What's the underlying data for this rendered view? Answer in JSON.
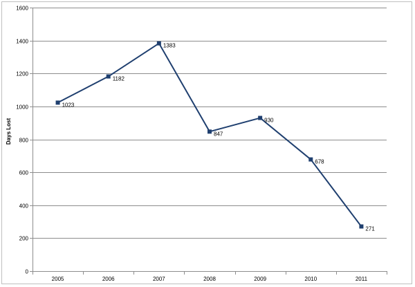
{
  "chart_data": {
    "type": "line",
    "title": "",
    "xlabel": "",
    "ylabel": "Days Lost",
    "categories": [
      "2005",
      "2006",
      "2007",
      "2008",
      "2009",
      "2010",
      "2011"
    ],
    "series": [
      {
        "values": [
          1023,
          1182,
          1383,
          847,
          930,
          678,
          271
        ],
        "data_labels": [
          "1023",
          "1182",
          "1383",
          "847",
          "930",
          "678",
          "271"
        ],
        "color": "#1f3f6f",
        "marker": "square"
      }
    ],
    "ylim": [
      0,
      1600
    ],
    "yticks": [
      "0",
      "200",
      "400",
      "600",
      "800",
      "1000",
      "1200",
      "1400",
      "1600"
    ],
    "grid": true,
    "legend": "none"
  }
}
